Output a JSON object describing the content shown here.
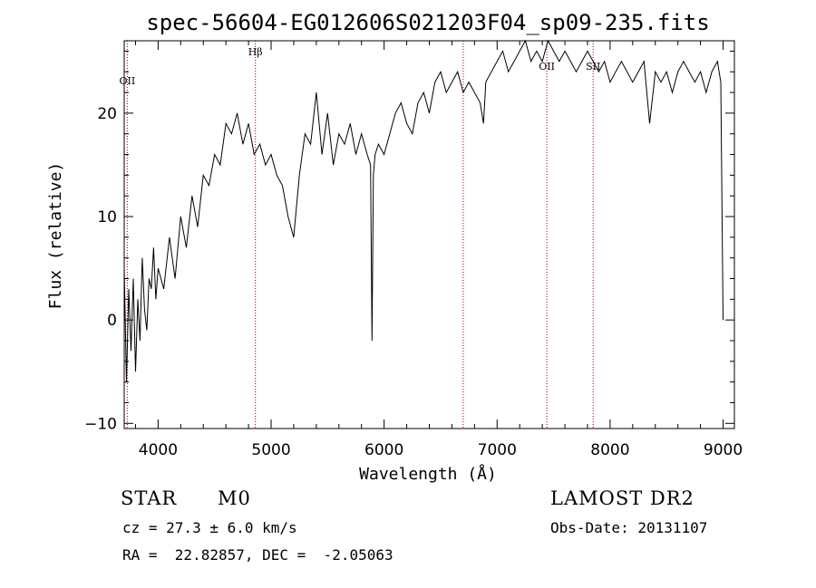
{
  "chart_data": {
    "type": "line",
    "title": "spec-56604-EG012606S021203F04_sp09-235.fits",
    "xlabel": "Wavelength (Å)",
    "ylabel": "Flux (relative)",
    "xlim": [
      3700,
      9100
    ],
    "ylim": [
      -10.5,
      27
    ],
    "xticks": [
      4000,
      5000,
      6000,
      7000,
      8000,
      9000
    ],
    "yticks": [
      -10,
      0,
      10,
      20
    ],
    "grid": false,
    "colors": {
      "spectrum": "#000000",
      "line_markers": "#8b0000"
    },
    "line_markers": [
      {
        "label": "OII",
        "x": 3727
      },
      {
        "label": "Hβ",
        "x": 4861
      },
      {
        "label": "",
        "x": 6700
      },
      {
        "label": "OII",
        "x": 7440
      },
      {
        "label": "SII",
        "x": 7850
      }
    ],
    "series": [
      {
        "x": [
          3700,
          3720,
          3740,
          3760,
          3780,
          3800,
          3820,
          3840,
          3860,
          3880,
          3900,
          3920,
          3940,
          3960,
          3980,
          4000,
          4050,
          4100,
          4150,
          4200,
          4250,
          4300,
          4350,
          4400,
          4450,
          4500,
          4550,
          4600,
          4650,
          4700,
          4750,
          4800,
          4850,
          4900,
          4950,
          5000,
          5050,
          5100,
          5150,
          5200,
          5250,
          5300,
          5350,
          5400,
          5450,
          5500,
          5550,
          5600,
          5650,
          5700,
          5750,
          5800,
          5850,
          5880,
          5893,
          5905,
          5920,
          5950,
          6000,
          6050,
          6100,
          6150,
          6200,
          6250,
          6300,
          6350,
          6400,
          6450,
          6500,
          6550,
          6600,
          6650,
          6700,
          6750,
          6800,
          6850,
          6880,
          6900,
          6950,
          7000,
          7050,
          7100,
          7150,
          7200,
          7250,
          7300,
          7350,
          7400,
          7450,
          7500,
          7550,
          7600,
          7650,
          7700,
          7750,
          7800,
          7850,
          7900,
          7950,
          8000,
          8050,
          8100,
          8150,
          8200,
          8250,
          8300,
          8350,
          8400,
          8450,
          8500,
          8550,
          8600,
          8650,
          8700,
          8750,
          8800,
          8850,
          8900,
          8950,
          8980,
          9000
        ],
        "values": [
          5,
          -6,
          3,
          -3,
          4,
          -5,
          2,
          -2,
          6,
          1,
          -1,
          4,
          3,
          7,
          2,
          5,
          3,
          8,
          4,
          10,
          7,
          12,
          9,
          14,
          13,
          16,
          15,
          19,
          18,
          20,
          17,
          19,
          16,
          17,
          15,
          16,
          14,
          13,
          10,
          8,
          14,
          18,
          17,
          22,
          16,
          20,
          15,
          18,
          17,
          19,
          16,
          18,
          16,
          15,
          -2,
          14,
          16,
          17,
          16,
          18,
          20,
          21,
          19,
          18,
          21,
          22,
          20,
          23,
          24,
          22,
          23,
          24,
          22,
          23,
          22,
          21,
          19,
          23,
          24,
          25,
          26,
          24,
          25,
          26,
          27,
          25,
          26,
          25,
          27,
          26,
          25,
          26,
          25,
          24,
          25,
          26,
          25,
          24,
          25,
          23,
          24,
          25,
          24,
          23,
          24,
          25,
          19,
          24,
          23,
          24,
          22,
          24,
          25,
          24,
          23,
          24,
          22,
          24,
          25,
          23,
          0
        ]
      }
    ]
  },
  "info": {
    "class": "STAR",
    "subclass": "M0",
    "survey": "LAMOST DR2",
    "redshift": "cz = 27.3 ± 6.0 km/s",
    "obs_date": "Obs-Date: 20131107",
    "coords": "RA =  22.82857, DEC =  -2.05063"
  }
}
